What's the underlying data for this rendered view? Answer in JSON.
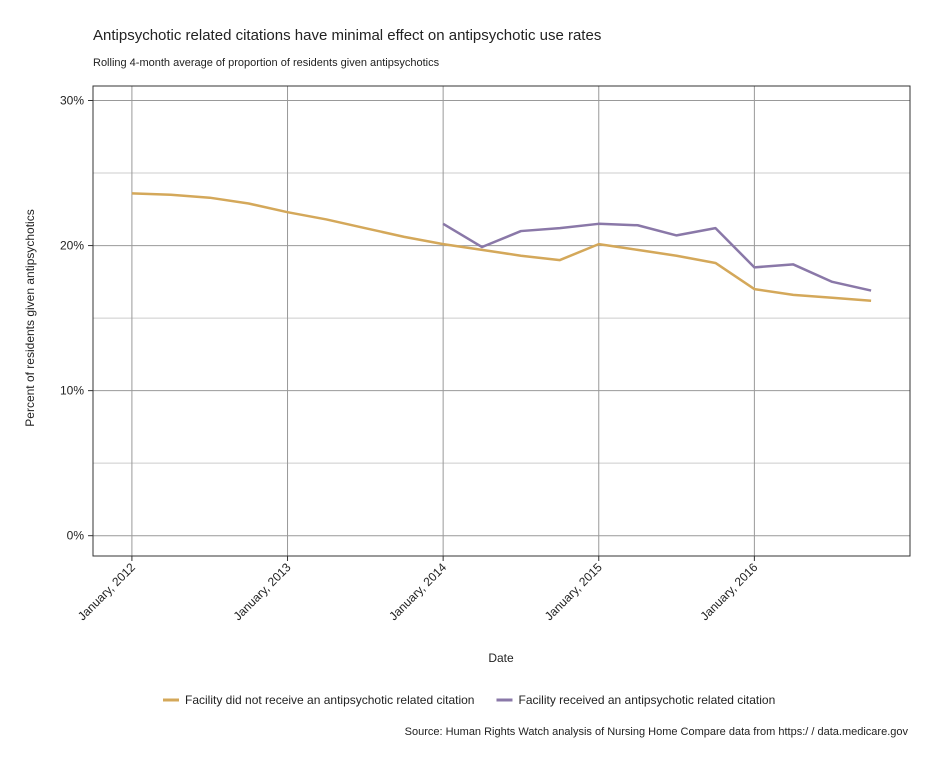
{
  "chart_data": {
    "type": "line",
    "title": "Antipsychotic related citations have minimal effect on antipsychotic use rates",
    "subtitle": "Rolling 4-month average of proportion of residents given antipsychotics",
    "xlabel": "Date",
    "ylabel": "Percent of residents given antipsychotics",
    "source": "Source: Human Rights Watch analysis of Nursing Home Compare data from https:/ / data.medicare.gov",
    "x": [
      "2012-01",
      "2012-04",
      "2012-07",
      "2012-10",
      "2013-01",
      "2013-04",
      "2013-07",
      "2013-10",
      "2014-01",
      "2014-04",
      "2014-07",
      "2014-10",
      "2015-01",
      "2015-04",
      "2015-07",
      "2015-10",
      "2016-01",
      "2016-04",
      "2016-07",
      "2016-10"
    ],
    "series": [
      {
        "name": "Facility did not receive an antipsychotic related citation",
        "color": "#d4a85a",
        "values": [
          23.6,
          23.5,
          23.3,
          22.9,
          22.3,
          21.8,
          21.2,
          20.6,
          20.1,
          19.7,
          19.3,
          19.0,
          20.1,
          19.7,
          19.3,
          18.8,
          17.0,
          16.6,
          16.4,
          16.2
        ]
      },
      {
        "name": "Facility received an antipsychotic related citation",
        "color": "#8a78a8",
        "values": [
          null,
          null,
          null,
          null,
          null,
          null,
          null,
          null,
          21.5,
          19.9,
          21.0,
          21.2,
          21.5,
          21.4,
          20.7,
          21.2,
          18.5,
          18.7,
          17.5,
          16.9
        ]
      }
    ],
    "xlim": [
      "2011-10",
      "2017-01"
    ],
    "xticks": [
      {
        "value": "2012-01",
        "label": "January, 2012"
      },
      {
        "value": "2013-01",
        "label": "January, 2013"
      },
      {
        "value": "2014-01",
        "label": "January, 2014"
      },
      {
        "value": "2015-01",
        "label": "January, 2015"
      },
      {
        "value": "2016-01",
        "label": "January, 2016"
      }
    ],
    "ylim": [
      -1.4,
      31
    ],
    "yticks": [
      {
        "value": 0,
        "label": "0%"
      },
      {
        "value": 10,
        "label": "10%"
      },
      {
        "value": 20,
        "label": "20%"
      },
      {
        "value": 30,
        "label": "30%"
      }
    ],
    "y_minor_grid": [
      5,
      15,
      25
    ],
    "grid": true,
    "legend": "bottom"
  }
}
